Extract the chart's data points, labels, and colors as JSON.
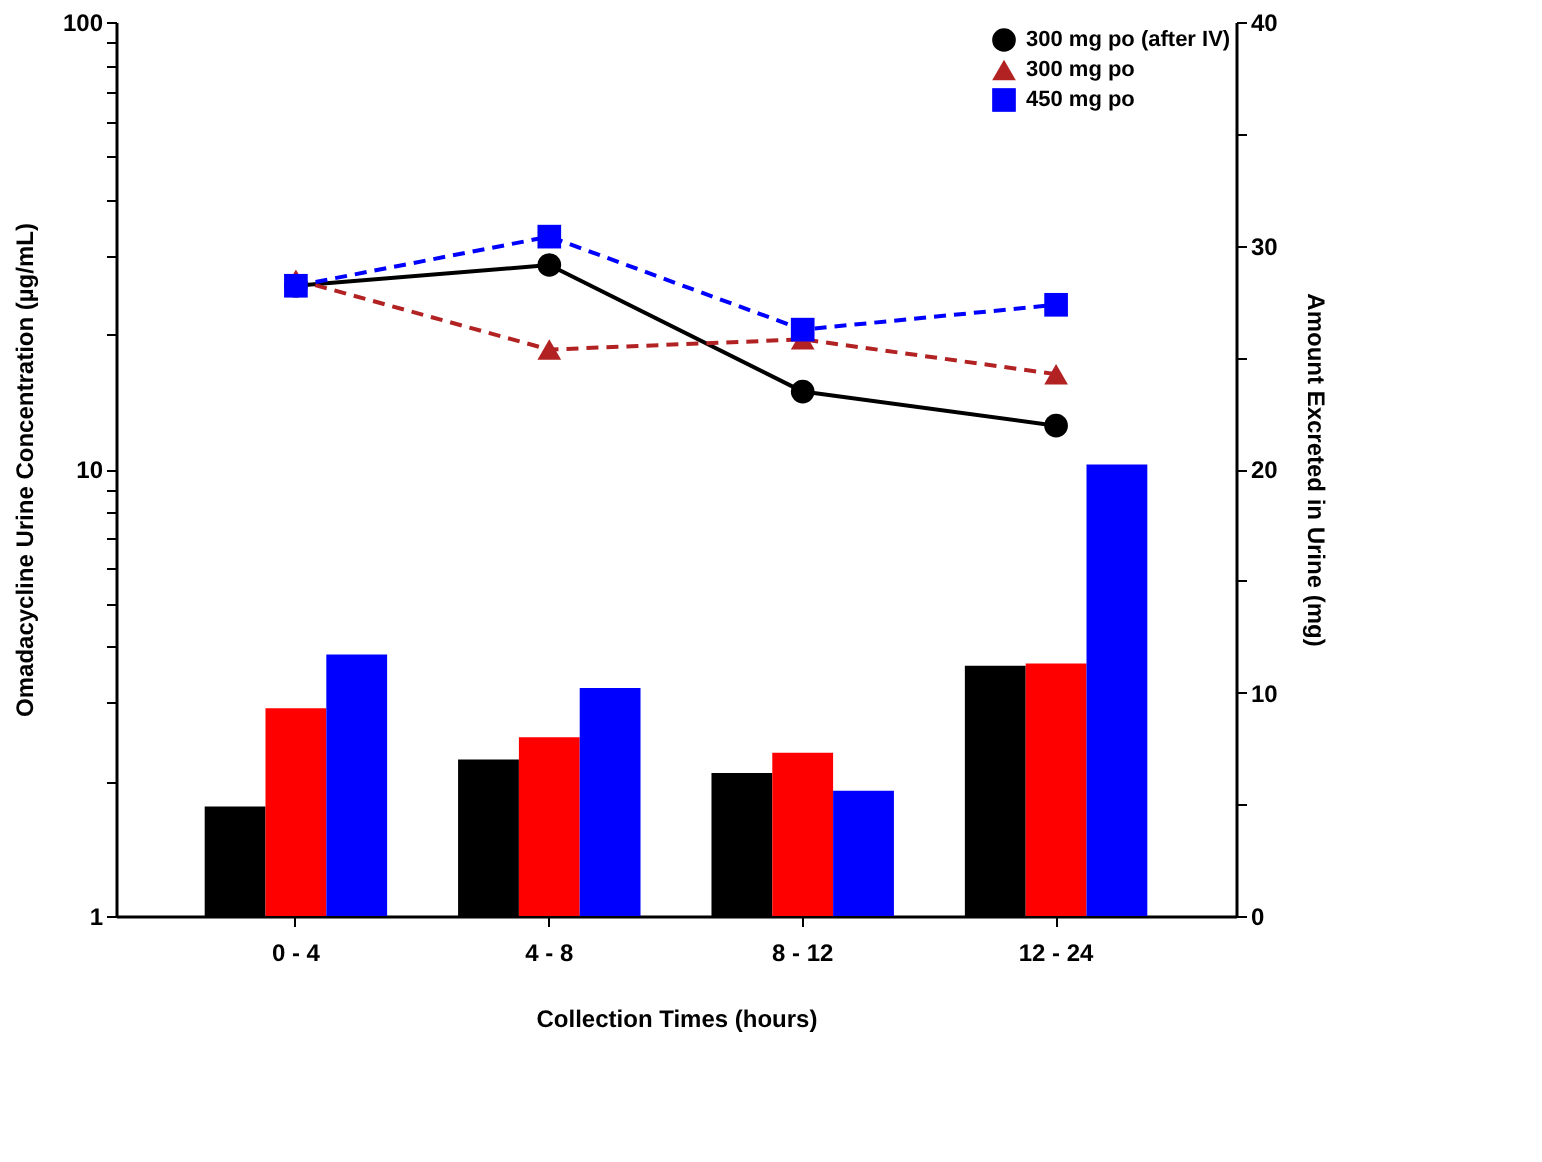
{
  "chart_data": {
    "type": "bar",
    "xlabel": "Collection Times (hours)",
    "ylabel": "Omadacycline Urine Concentration (µg/mL)",
    "y2label": "Amount Excreted in Urine (mg)",
    "categories": [
      "0 - 4",
      "4 - 8",
      "8 - 12",
      "12 - 24"
    ],
    "series": [
      {
        "axis": "y2",
        "color": "#000000",
        "values": [
          4.9,
          7.0,
          6.4,
          11.2
        ]
      },
      {
        "axis": "y2",
        "color": "#ff0000",
        "values": [
          9.3,
          8.0,
          7.3,
          11.3
        ]
      },
      {
        "axis": "y2",
        "color": "#0000ff",
        "values": [
          11.7,
          10.2,
          5.6,
          20.2
        ]
      },
      {
        "type": "line",
        "name": "300 mg po (after IV)",
        "color": "#000000",
        "marker": "circle",
        "line_style": "solid",
        "values": [
          25.7,
          28.6,
          14.9,
          12.5
        ]
      },
      {
        "type": "line",
        "name": "300 mg po",
        "color": "#b22222",
        "marker": "triangle",
        "line_style": "dashed",
        "values": [
          26.5,
          18.5,
          19.5,
          16.3
        ]
      },
      {
        "type": "line",
        "name": "450 mg po",
        "color": "#0000ff",
        "marker": "square",
        "line_style": "dashed",
        "values": [
          25.7,
          33.1,
          20.5,
          23.3
        ]
      }
    ],
    "log": "y",
    "ylim": [
      1,
      100
    ],
    "yticks": [
      1,
      {
        "value": 2,
        "label": null
      },
      {
        "value": 3,
        "label": null
      },
      {
        "value": 4,
        "label": null
      },
      {
        "value": 5,
        "label": null
      },
      {
        "value": 6,
        "label": null
      },
      {
        "value": 7,
        "label": null
      },
      {
        "value": 8,
        "label": null
      },
      {
        "value": 9,
        "label": null
      },
      10,
      {
        "value": 20,
        "label": null
      },
      {
        "value": 30,
        "label": null
      },
      {
        "value": 40,
        "label": null
      },
      {
        "value": 50,
        "label": null
      },
      {
        "value": 60,
        "label": null
      },
      {
        "value": 70,
        "label": null
      },
      {
        "value": 80,
        "label": null
      },
      {
        "value": 90,
        "label": null
      },
      100
    ],
    "y2lim": [
      0,
      40
    ],
    "y2ticks": [
      0,
      {
        "value": 5,
        "label": null
      },
      10,
      {
        "value": 15,
        "label": null
      },
      20,
      {
        "value": 25,
        "label": null
      },
      30,
      {
        "value": 35,
        "label": null
      },
      40
    ],
    "grid": false,
    "legend": "top right"
  }
}
